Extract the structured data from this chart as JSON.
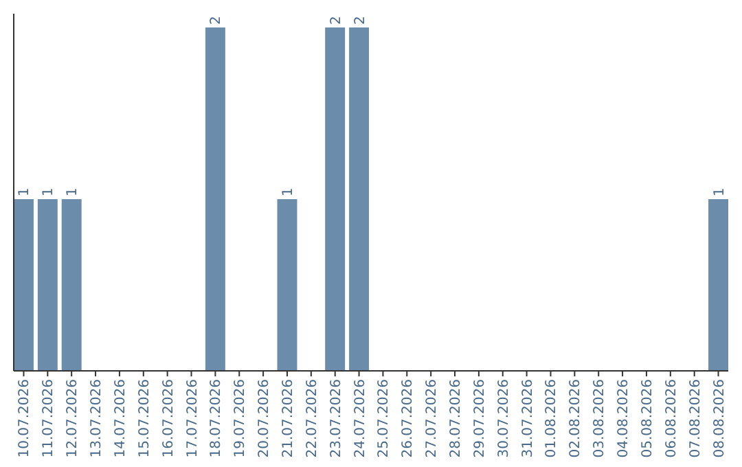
{
  "chart_data": {
    "type": "bar",
    "categories": [
      "10.07.2026",
      "11.07.2026",
      "12.07.2026",
      "13.07.2026",
      "14.07.2026",
      "15.07.2026",
      "16.07.2026",
      "17.07.2026",
      "18.07.2026",
      "19.07.2026",
      "20.07.2026",
      "21.07.2026",
      "22.07.2026",
      "23.07.2026",
      "24.07.2026",
      "25.07.2026",
      "26.07.2026",
      "27.07.2026",
      "28.07.2026",
      "29.07.2026",
      "30.07.2026",
      "31.07.2026",
      "01.08.2026",
      "02.08.2026",
      "03.08.2026",
      "04.08.2026",
      "05.08.2026",
      "06.08.2026",
      "07.08.2026",
      "08.08.2026"
    ],
    "values": [
      1,
      1,
      1,
      0,
      0,
      0,
      0,
      0,
      2,
      0,
      0,
      1,
      0,
      2,
      2,
      0,
      0,
      0,
      0,
      0,
      0,
      0,
      0,
      0,
      0,
      0,
      0,
      0,
      0,
      1
    ],
    "value_labels": [
      "1",
      "1",
      "1",
      null,
      null,
      null,
      null,
      null,
      "2",
      null,
      null,
      "1",
      null,
      "2",
      "2",
      null,
      null,
      null,
      null,
      null,
      null,
      null,
      null,
      null,
      null,
      null,
      null,
      null,
      null,
      "1"
    ],
    "color": "#6b8cab",
    "ylim": [
      0,
      2.08
    ],
    "tick_labels": "x"
  }
}
